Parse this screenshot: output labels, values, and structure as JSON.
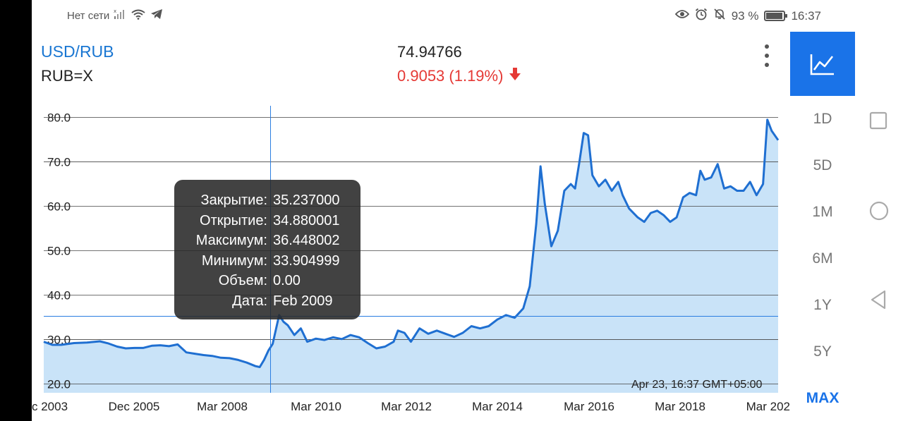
{
  "status_bar": {
    "network": "Нет сети",
    "battery": "93 %",
    "time": "16:37"
  },
  "header": {
    "pair": "USD/RUB",
    "symbol": "RUB=X",
    "price": "74.94766",
    "change": "0.9053 (1.19%)"
  },
  "ranges": [
    "1D",
    "5D",
    "1M",
    "6M",
    "1Y",
    "5Y",
    "MAX"
  ],
  "active_range": "MAX",
  "tooltip": {
    "rows": [
      {
        "label": "Закрытие:",
        "value": "35.237000"
      },
      {
        "label": "Открытие:",
        "value": "34.880001"
      },
      {
        "label": "Максимум:",
        "value": "36.448002"
      },
      {
        "label": "Минимум:",
        "value": "33.904999"
      },
      {
        "label": "Объем:",
        "value": "0.00"
      },
      {
        "label": "Дата:",
        "value": "Feb 2009"
      }
    ]
  },
  "timestamp": "Apr 23, 16:37 GMT+05:00",
  "colors": {
    "accent": "#1a73e8",
    "line": "#1f6fd1",
    "fill": "#c9e3f8",
    "negative": "#e53935"
  },
  "chart_data": {
    "type": "area",
    "y_ticks": [
      "80.0",
      "70.0",
      "60.0",
      "50.0",
      "40.0",
      "30.0",
      "20.0"
    ],
    "x_ticks": [
      "c 2003",
      "Dec 2005",
      "Mar 2008",
      "Mar 2010",
      "Mar 2012",
      "Mar 2014",
      "Mar 2016",
      "Mar 2018",
      "Mar 202"
    ],
    "ylim": [
      18,
      82
    ],
    "xlim": [
      2003.6,
      2020.6
    ],
    "crosshair": {
      "x": 2008.85,
      "y": 35.237
    },
    "points": [
      [
        2003.6,
        29.5
      ],
      [
        2003.8,
        28.8
      ],
      [
        2004.0,
        28.8
      ],
      [
        2004.3,
        29.2
      ],
      [
        2004.6,
        29.3
      ],
      [
        2004.9,
        29.6
      ],
      [
        2005.1,
        29.1
      ],
      [
        2005.3,
        28.4
      ],
      [
        2005.5,
        28.0
      ],
      [
        2005.7,
        28.1
      ],
      [
        2005.9,
        28.1
      ],
      [
        2006.1,
        28.6
      ],
      [
        2006.3,
        28.7
      ],
      [
        2006.5,
        28.5
      ],
      [
        2006.7,
        28.9
      ],
      [
        2006.9,
        27.1
      ],
      [
        2007.1,
        26.8
      ],
      [
        2007.3,
        26.5
      ],
      [
        2007.5,
        26.3
      ],
      [
        2007.7,
        25.9
      ],
      [
        2007.9,
        25.8
      ],
      [
        2008.1,
        25.4
      ],
      [
        2008.3,
        24.8
      ],
      [
        2008.5,
        24.0
      ],
      [
        2008.6,
        23.8
      ],
      [
        2008.7,
        25.4
      ],
      [
        2008.8,
        27.5
      ],
      [
        2008.9,
        29.0
      ],
      [
        2009.05,
        35.5
      ],
      [
        2009.15,
        34.0
      ],
      [
        2009.25,
        33.2
      ],
      [
        2009.4,
        31.0
      ],
      [
        2009.55,
        32.5
      ],
      [
        2009.7,
        29.5
      ],
      [
        2009.9,
        30.2
      ],
      [
        2010.1,
        29.9
      ],
      [
        2010.3,
        30.5
      ],
      [
        2010.5,
        30.1
      ],
      [
        2010.7,
        31.0
      ],
      [
        2010.9,
        30.5
      ],
      [
        2011.1,
        29.2
      ],
      [
        2011.3,
        28.0
      ],
      [
        2011.5,
        28.4
      ],
      [
        2011.7,
        29.5
      ],
      [
        2011.8,
        32.0
      ],
      [
        2011.95,
        31.5
      ],
      [
        2012.1,
        29.5
      ],
      [
        2012.3,
        32.5
      ],
      [
        2012.5,
        31.3
      ],
      [
        2012.7,
        32.0
      ],
      [
        2012.9,
        31.3
      ],
      [
        2013.1,
        30.6
      ],
      [
        2013.3,
        31.5
      ],
      [
        2013.5,
        33.0
      ],
      [
        2013.7,
        32.5
      ],
      [
        2013.9,
        33.0
      ],
      [
        2014.1,
        34.5
      ],
      [
        2014.3,
        35.5
      ],
      [
        2014.5,
        34.9
      ],
      [
        2014.7,
        37.0
      ],
      [
        2014.85,
        42.0
      ],
      [
        2015.0,
        56.0
      ],
      [
        2015.1,
        69.0
      ],
      [
        2015.2,
        60.5
      ],
      [
        2015.35,
        51.0
      ],
      [
        2015.5,
        54.5
      ],
      [
        2015.65,
        63.5
      ],
      [
        2015.8,
        65.0
      ],
      [
        2015.9,
        64.0
      ],
      [
        2016.0,
        70.0
      ],
      [
        2016.1,
        76.5
      ],
      [
        2016.2,
        76.0
      ],
      [
        2016.3,
        67.0
      ],
      [
        2016.45,
        64.5
      ],
      [
        2016.6,
        66.0
      ],
      [
        2016.75,
        63.5
      ],
      [
        2016.9,
        65.5
      ],
      [
        2017.0,
        62.5
      ],
      [
        2017.15,
        59.5
      ],
      [
        2017.35,
        57.5
      ],
      [
        2017.5,
        56.5
      ],
      [
        2017.65,
        58.5
      ],
      [
        2017.8,
        59.0
      ],
      [
        2017.95,
        58.0
      ],
      [
        2018.1,
        56.5
      ],
      [
        2018.25,
        57.5
      ],
      [
        2018.4,
        62.0
      ],
      [
        2018.55,
        63.0
      ],
      [
        2018.7,
        62.5
      ],
      [
        2018.8,
        68.0
      ],
      [
        2018.9,
        66.0
      ],
      [
        2019.05,
        66.5
      ],
      [
        2019.2,
        69.5
      ],
      [
        2019.35,
        64.0
      ],
      [
        2019.5,
        64.5
      ],
      [
        2019.65,
        63.5
      ],
      [
        2019.8,
        63.5
      ],
      [
        2019.95,
        65.5
      ],
      [
        2020.1,
        62.5
      ],
      [
        2020.25,
        65.0
      ],
      [
        2020.35,
        79.5
      ],
      [
        2020.45,
        77.0
      ],
      [
        2020.6,
        74.9
      ]
    ]
  }
}
